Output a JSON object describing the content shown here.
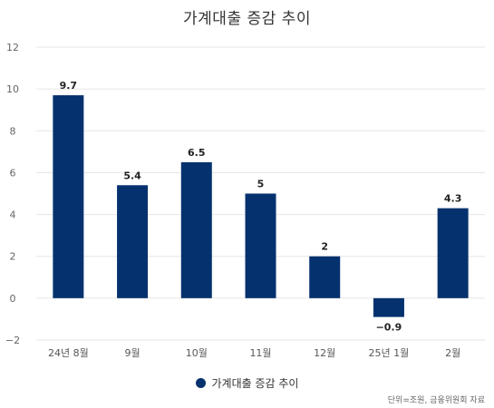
{
  "chart_data": {
    "type": "bar",
    "title": "가계대출 증감 추이",
    "categories": [
      "24년 8월",
      "9월",
      "10월",
      "11월",
      "12월",
      "25년 1월",
      "2월"
    ],
    "series": [
      {
        "name": "가계대출 증감 추이",
        "values": [
          9.7,
          5.4,
          6.5,
          5,
          2,
          -0.9,
          4.3
        ],
        "labels": [
          "9.7",
          "5.4",
          "6.5",
          "5",
          "2",
          "−0.9",
          "4.3"
        ],
        "color": "#05326e"
      }
    ],
    "ylim": [
      -2,
      12
    ],
    "yticks": [
      "−2",
      "0",
      "2",
      "4",
      "6",
      "8",
      "10",
      "12"
    ],
    "ytick_values": [
      -2,
      0,
      2,
      4,
      6,
      8,
      10,
      12
    ],
    "grid": true,
    "legend_position": "bottom-center",
    "source_note": "단위=조원, 금융위원회 자료"
  }
}
